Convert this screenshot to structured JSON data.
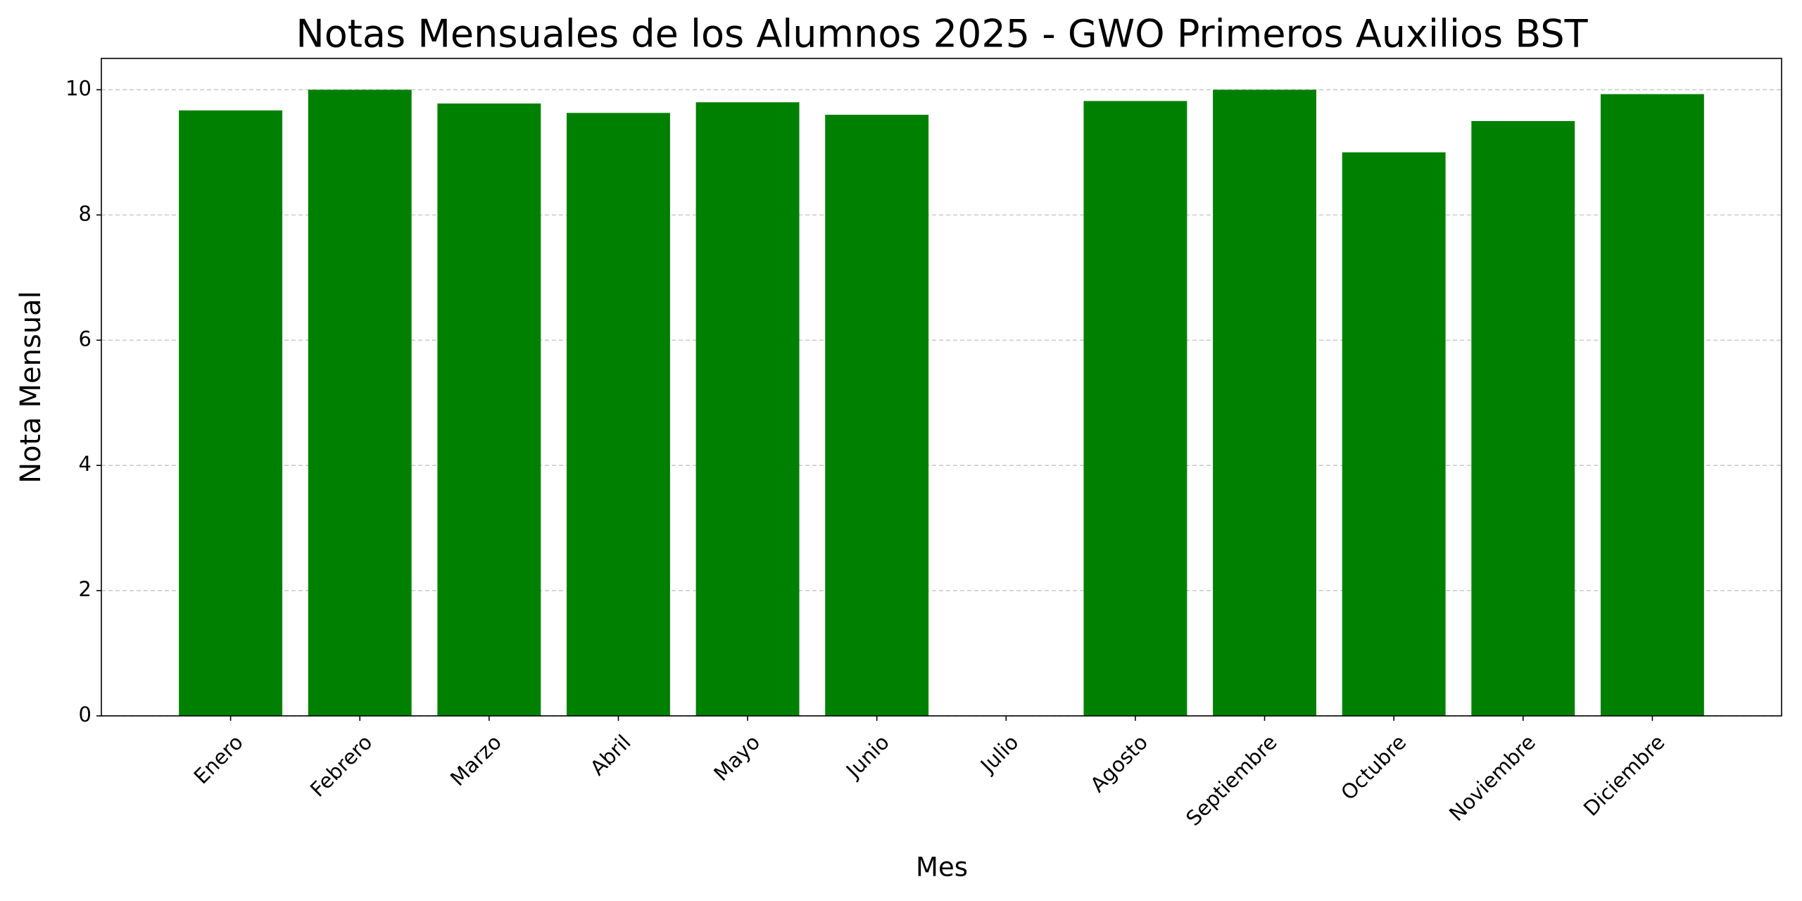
{
  "chart_data": {
    "type": "bar",
    "title": "Notas Mensuales de los Alumnos 2025 - GWO Primeros Auxilios BST",
    "x_label": "Mes",
    "y_label": "Nota Mensual",
    "categories": [
      "Enero",
      "Febrero",
      "Marzo",
      "Abril",
      "Mayo",
      "Junio",
      "Julio",
      "Agosto",
      "Septiembre",
      "Octubre",
      "Noviembre",
      "Diciembre"
    ],
    "values": [
      9.67,
      10,
      9.78,
      9.63,
      9.8,
      9.6,
      null,
      9.82,
      10,
      9.0,
      9.5,
      9.93
    ],
    "color": "#008000",
    "ylim": [
      0,
      10.5
    ],
    "yticks": [
      0,
      2,
      4,
      6,
      8,
      10
    ],
    "grid": true
  }
}
